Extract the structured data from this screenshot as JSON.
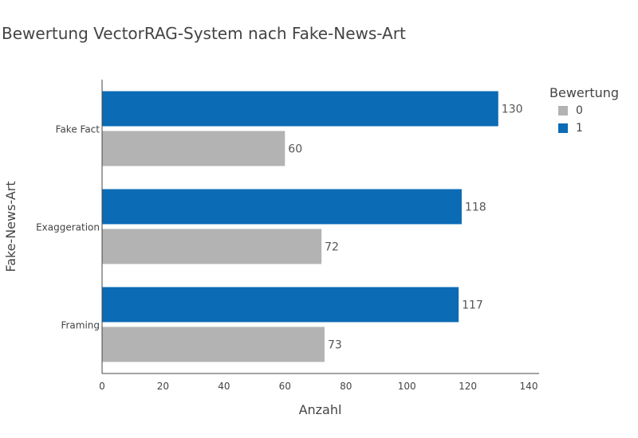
{
  "chart_data": {
    "type": "bar",
    "orientation": "horizontal",
    "title": "Bewertung VectorRAG-System nach Fake-News-Art",
    "xlabel": "Anzahl",
    "ylabel": "Fake-News-Art",
    "categories": [
      "Fake Fact",
      "Exaggeration",
      "Framing"
    ],
    "series": [
      {
        "name": "0",
        "color": "#b3b3b3",
        "values": [
          60,
          72,
          73
        ]
      },
      {
        "name": "1",
        "color": "#0b6bb5",
        "values": [
          130,
          118,
          117
        ]
      }
    ],
    "xlim": [
      0,
      140
    ],
    "xticks": [
      0,
      20,
      40,
      60,
      80,
      100,
      120,
      140
    ],
    "data_labels": true,
    "grid": false,
    "legend": {
      "title": "Bewertung",
      "placement": "right"
    }
  }
}
